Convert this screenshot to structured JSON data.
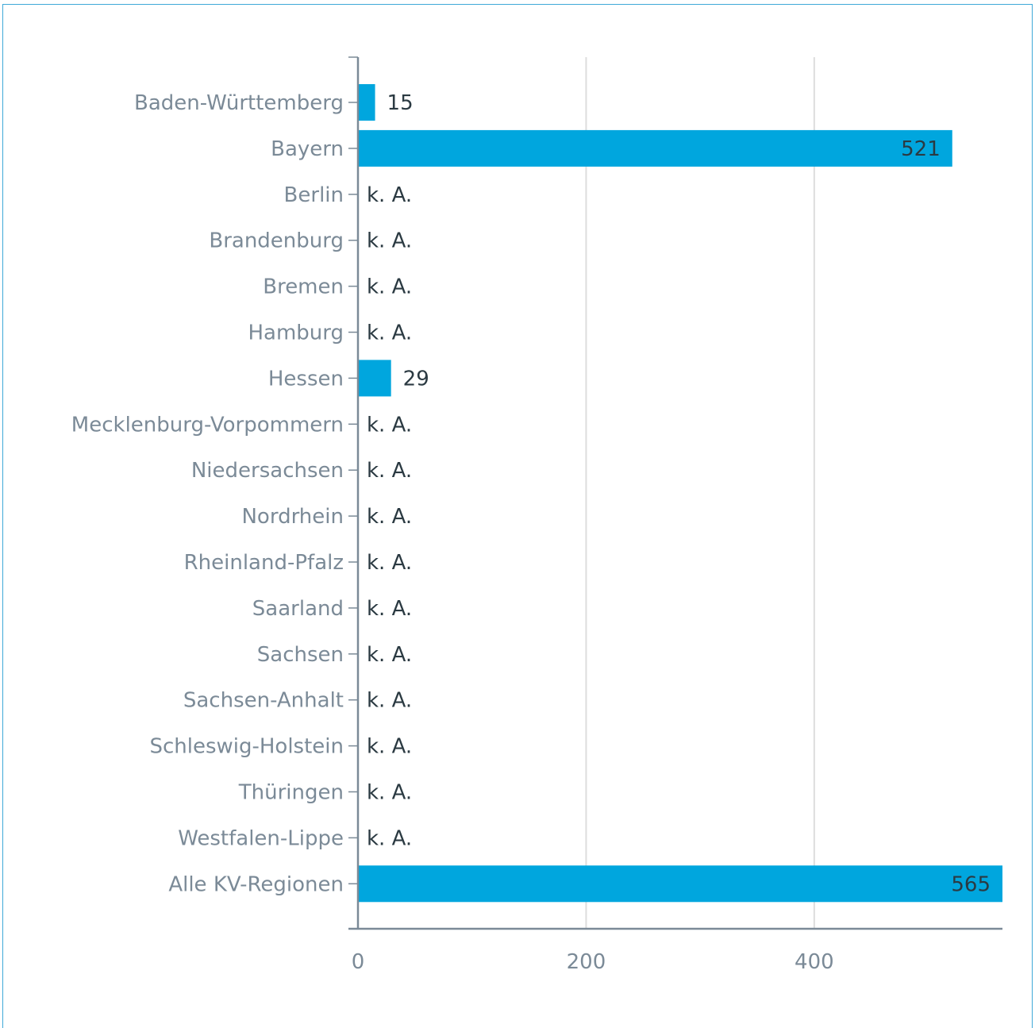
{
  "chart_data": {
    "type": "bar",
    "orientation": "horizontal",
    "title": "",
    "xlabel": "",
    "ylabel": "",
    "categories": [
      "Baden-Württemberg",
      "Bayern",
      "Berlin",
      "Brandenburg",
      "Bremen",
      "Hamburg",
      "Hessen",
      "Mecklenburg-Vorpommern",
      "Niedersachsen",
      "Nordrhein",
      "Rheinland-Pfalz",
      "Saarland",
      "Sachsen",
      "Sachsen-Anhalt",
      "Schleswig-Holstein",
      "Thüringen",
      "Westfalen-Lippe",
      "Alle KV-Regionen"
    ],
    "values": [
      15,
      521,
      null,
      null,
      null,
      null,
      29,
      null,
      null,
      null,
      null,
      null,
      null,
      null,
      null,
      null,
      null,
      565
    ],
    "value_labels": [
      "15",
      "521",
      "k. A.",
      "k. A.",
      "k. A.",
      "k. A.",
      "29",
      "k. A.",
      "k. A.",
      "k. A.",
      "k. A.",
      "k. A.",
      "k. A.",
      "k. A.",
      "k. A.",
      "k. A.",
      "k. A.",
      "565"
    ],
    "x_ticks": [
      0,
      200,
      400
    ],
    "x_tick_labels": [
      "0",
      "200",
      "400"
    ],
    "xlim": [
      0,
      565
    ],
    "grid": true,
    "bar_color": "#00a6de",
    "grid_color": "#dddddd",
    "axis_color": "#7b8a97"
  }
}
